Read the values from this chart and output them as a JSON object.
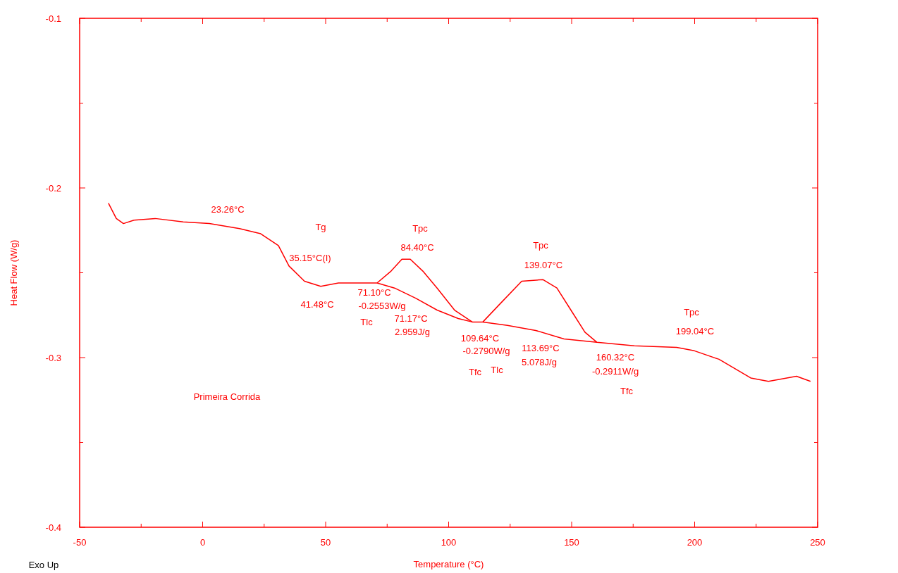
{
  "chart_data": {
    "type": "line",
    "xlabel": "Temperature (°C)",
    "ylabel": "Heat Flow (W/g)",
    "xlim": [
      -50,
      250
    ],
    "ylim": [
      -0.4,
      -0.1
    ],
    "xticks": [
      -50,
      {
        "value": -25,
        "label": null
      },
      0,
      {
        "value": 25,
        "label": null
      },
      50,
      {
        "value": 75,
        "label": null
      },
      100,
      {
        "value": 125,
        "label": null
      },
      150,
      {
        "value": 175,
        "label": null
      },
      200,
      {
        "value": 225,
        "label": null
      },
      250
    ],
    "yticks": [
      -0.4,
      {
        "value": -0.35,
        "label": null
      },
      -0.3,
      {
        "value": -0.25,
        "label": null
      },
      -0.2,
      {
        "value": -0.15,
        "label": null
      },
      -0.1
    ],
    "grid": false,
    "marker": "none",
    "line_style": "solid",
    "series": [
      {
        "color": "#ff0000",
        "x": [
          -38.3,
          -35.1,
          -32.2,
          -27.9,
          -19.3,
          -7.9,
          2.7,
          15.0,
          23.6,
          30.8,
          35.1,
          41.4,
          48.0,
          55.2,
          63.8,
          70.9,
          76.6,
          81.0,
          84.4,
          89.5,
          95.3,
          102.4,
          109.6,
          113.9,
          121.1,
          129.7,
          138.3,
          144.0,
          149.7,
          155.4,
          160.3,
          175.5,
          192.7,
          199.9,
          209.9,
          222.8,
          230.0,
          241.4,
          247.1
        ],
        "values": [
          -0.209,
          -0.218,
          -0.221,
          -0.219,
          -0.218,
          -0.22,
          -0.221,
          -0.224,
          -0.227,
          -0.234,
          -0.246,
          -0.255,
          -0.258,
          -0.256,
          -0.256,
          -0.256,
          -0.249,
          -0.242,
          -0.242,
          -0.249,
          -0.259,
          -0.272,
          -0.279,
          -0.279,
          -0.268,
          -0.255,
          -0.254,
          -0.259,
          -0.272,
          -0.285,
          -0.291,
          -0.293,
          -0.294,
          -0.296,
          -0.301,
          -0.312,
          -0.314,
          -0.311,
          -0.314
        ]
      },
      {
        "color": "#ff0000",
        "x": [
          70.9,
          78.0,
          86.6,
          95.3,
          103.9,
          109.6
        ],
        "values": [
          -0.256,
          -0.259,
          -0.265,
          -0.272,
          -0.277,
          -0.279
        ]
      },
      {
        "color": "#ff0000",
        "x": [
          113.9,
          123.9,
          135.4,
          146.9,
          160.3
        ],
        "values": [
          -0.279,
          -0.281,
          -0.284,
          -0.289,
          -0.291
        ]
      }
    ],
    "annotations": [
      "23.26°C",
      "Tg",
      "35.15°C(I)",
      "41.48°C",
      "Tpc",
      "84.40°C",
      "71.10°C",
      "-0.2553W/g",
      "Tlc",
      "71.17°C",
      "2.959J/g",
      "Tpc",
      "139.07°C",
      "109.64°C",
      "-0.2790W/g",
      "Tfc",
      "Tlc",
      "113.69°C",
      "5.078J/g",
      "160.32°C",
      "-0.2911W/g",
      "Tfc",
      "Tpc",
      "199.04°C",
      "Primeira Corrida",
      "Exo Up"
    ]
  }
}
